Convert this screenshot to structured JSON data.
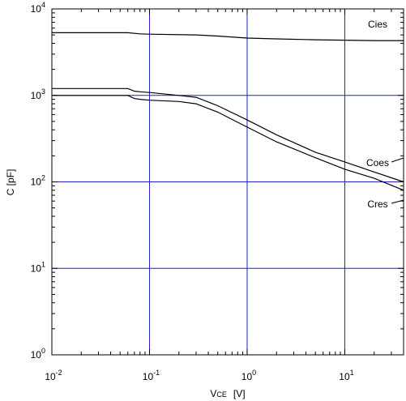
{
  "chart_data": {
    "type": "line",
    "title": "",
    "xlabel_main": "V",
    "xlabel_sub": "CE",
    "xlabel_unit": "[V]",
    "ylabel": "C [pF]",
    "x_scale": "log",
    "y_scale": "log",
    "xlim": [
      0.01,
      40
    ],
    "ylim": [
      1,
      10000
    ],
    "grid": true,
    "grid_color": "#1f1fcf",
    "line_color": "#000000",
    "x_ticks": [
      {
        "base": "10",
        "exp": "-2",
        "value": 0.01
      },
      {
        "base": "10",
        "exp": "-1",
        "value": 0.1
      },
      {
        "base": "10",
        "exp": "0",
        "value": 1
      },
      {
        "base": "10",
        "exp": "1",
        "value": 10
      }
    ],
    "y_ticks": [
      {
        "base": "10",
        "exp": "0",
        "value": 1
      },
      {
        "base": "10",
        "exp": "1",
        "value": 10
      },
      {
        "base": "10",
        "exp": "2",
        "value": 100
      },
      {
        "base": "10",
        "exp": "3",
        "value": 1000
      },
      {
        "base": "10",
        "exp": "4",
        "value": 10000
      }
    ],
    "series": [
      {
        "name": "Cies",
        "x": [
          0.01,
          0.06,
          0.08,
          0.1,
          0.3,
          0.5,
          1,
          2,
          5,
          10,
          20,
          40
        ],
        "y": [
          5300,
          5300,
          5150,
          5100,
          5000,
          4850,
          4600,
          4500,
          4400,
          4350,
          4300,
          4300
        ]
      },
      {
        "name": "Coes",
        "x": [
          0.01,
          0.06,
          0.07,
          0.08,
          0.1,
          0.2,
          0.3,
          0.5,
          1,
          2,
          5,
          10,
          20,
          40
        ],
        "y": [
          1200,
          1200,
          1120,
          1100,
          1080,
          1000,
          950,
          760,
          520,
          350,
          220,
          170,
          130,
          100
        ]
      },
      {
        "name": "Cres",
        "x": [
          0.01,
          0.06,
          0.07,
          0.08,
          0.1,
          0.2,
          0.3,
          0.5,
          1,
          2,
          5,
          10,
          20,
          40
        ],
        "y": [
          1000,
          1000,
          920,
          900,
          880,
          850,
          800,
          640,
          430,
          290,
          190,
          140,
          110,
          80
        ]
      }
    ]
  }
}
